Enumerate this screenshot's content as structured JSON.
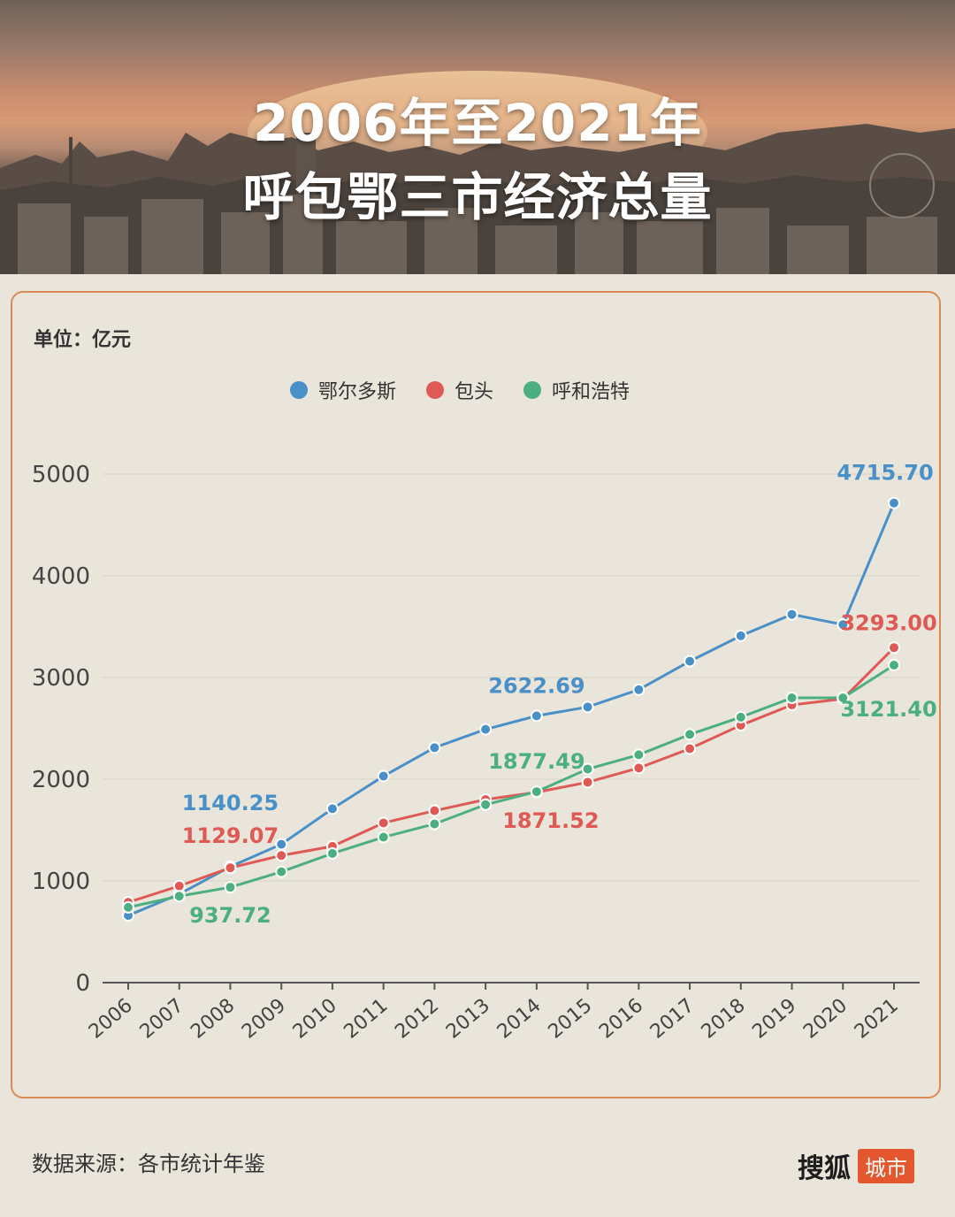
{
  "header": {
    "title_line1": "2006年至2021年",
    "title_line2": "呼包鄂三市经济总量"
  },
  "unit_label": "单位：亿元",
  "legend": [
    {
      "name": "鄂尔多斯",
      "color": "#4a90c8"
    },
    {
      "name": "包头",
      "color": "#e05a55"
    },
    {
      "name": "呼和浩特",
      "color": "#4caf80"
    }
  ],
  "footer": {
    "source": "数据来源：各市统计年鉴",
    "brand_name": "搜狐",
    "brand_tag": "城市"
  },
  "chart_data": {
    "type": "line",
    "x": [
      "2006",
      "2007",
      "2008",
      "2009",
      "2010",
      "2011",
      "2012",
      "2013",
      "2014",
      "2015",
      "2016",
      "2017",
      "2018",
      "2019",
      "2020",
      "2021"
    ],
    "ylim": [
      0,
      5000
    ],
    "yticks": [
      0,
      1000,
      2000,
      3000,
      4000,
      5000
    ],
    "grid": true,
    "series": [
      {
        "name": "鄂尔多斯",
        "color": "#4a90c8",
        "values": [
          660,
          870,
          1140.25,
          1360,
          1710,
          2030,
          2310,
          2490,
          2622.69,
          2710,
          2880,
          3160,
          3410,
          3620,
          3520,
          4715.7
        ],
        "labels": {
          "2008": "1140.25",
          "2014": "2622.69",
          "2021": "4715.70"
        }
      },
      {
        "name": "包头",
        "color": "#e05a55",
        "values": [
          790,
          950,
          1129.07,
          1250,
          1340,
          1570,
          1690,
          1800,
          1871.52,
          1970,
          2110,
          2300,
          2530,
          2730,
          2790,
          3293.0
        ],
        "labels": {
          "2008": "1129.07",
          "2014": "1871.52",
          "2021": "3293.00"
        }
      },
      {
        "name": "呼和浩特",
        "color": "#4caf80",
        "values": [
          740,
          850,
          937.72,
          1090,
          1270,
          1430,
          1560,
          1750,
          1877.49,
          2100,
          2240,
          2440,
          2610,
          2800,
          2800,
          3121.4
        ],
        "labels": {
          "2008": "937.72",
          "2014": "1877.49",
          "2021": "3121.40"
        }
      }
    ]
  }
}
